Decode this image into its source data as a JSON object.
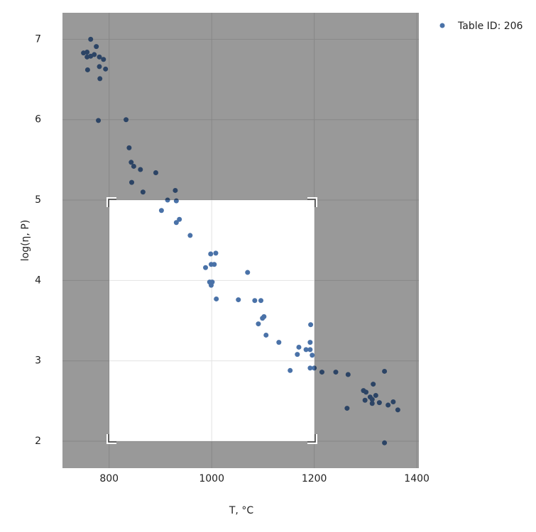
{
  "chart_data": {
    "type": "scatter",
    "x_label": "T, °C",
    "y_label": "log(η, P)",
    "x": [
      764,
      775,
      750,
      757,
      757,
      764,
      771,
      781,
      789,
      758,
      781,
      793,
      782,
      779,
      833,
      839,
      843,
      848,
      861,
      891,
      844,
      866,
      929,
      914,
      931,
      902,
      937,
      931,
      958,
      998,
      1008,
      999,
      1005,
      988,
      1070,
      996,
      1001,
      999,
      1009,
      1052,
      1084,
      1096,
      1102,
      1099,
      1091,
      1106,
      1131,
      1193,
      1192,
      1170,
      1184,
      1192,
      1196,
      1167,
      1153,
      1192,
      1200,
      1215,
      1242,
      1266,
      1337,
      1315,
      1296,
      1301,
      1320,
      1309,
      1313,
      1299,
      1327,
      1313,
      1344,
      1354,
      1363,
      1264,
      1337
    ],
    "series": [
      {
        "name": "Table ID: 206",
        "color": "#4a72a8",
        "values": [
          7.0,
          6.91,
          6.83,
          6.84,
          6.78,
          6.79,
          6.81,
          6.78,
          6.75,
          6.62,
          6.66,
          6.63,
          6.51,
          5.99,
          6.0,
          5.65,
          5.47,
          5.42,
          5.38,
          5.34,
          5.22,
          5.1,
          5.12,
          5.0,
          4.99,
          4.87,
          4.76,
          4.72,
          4.56,
          4.33,
          4.34,
          4.2,
          4.2,
          4.16,
          4.1,
          3.98,
          3.98,
          3.94,
          3.77,
          3.76,
          3.75,
          3.75,
          3.55,
          3.53,
          3.46,
          3.32,
          3.23,
          3.45,
          3.23,
          3.17,
          3.14,
          3.14,
          3.07,
          3.08,
          2.88,
          2.91,
          2.91,
          2.86,
          2.86,
          2.83,
          2.87,
          2.71,
          2.63,
          2.61,
          2.57,
          2.55,
          2.52,
          2.51,
          2.48,
          2.47,
          2.45,
          2.49,
          2.39,
          2.41,
          1.98
        ]
      }
    ],
    "xlim": [
      709,
      1404
    ],
    "ylim": [
      1.665,
      7.33
    ],
    "xticks": [
      800,
      1000,
      1200,
      1400
    ],
    "yticks": [
      2,
      3,
      4,
      5,
      6,
      7
    ],
    "grid": true
  }
}
